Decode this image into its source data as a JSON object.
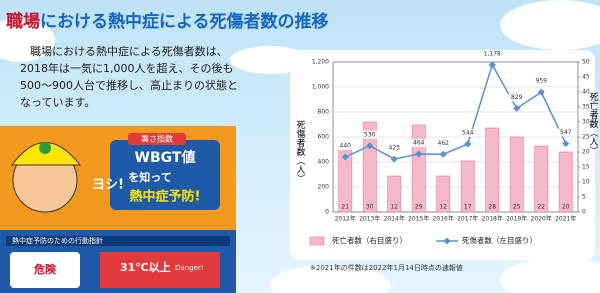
{
  "header": {
    "title_red": "職場",
    "title_rest": "における熱中症による死傷者数の推移"
  },
  "body": {
    "lines": [
      "職場における熱中症による死傷者数は、",
      "2018年は一気に1,000人を超え、その後も",
      "500〜900人台で推移し、高止まりの状態と",
      "なっています。"
    ]
  },
  "poster": {
    "badge": "暑さ指数",
    "sign": "WBGT値",
    "line1": "を知って",
    "line2": "熱中症予防!",
    "shout": "ヨシ!",
    "guide": "熱中症予防のための行動指針",
    "level": "危険",
    "temp": "31℃以上",
    "danger": "Danger!"
  },
  "chart_data": {
    "type": "combo",
    "categories": [
      "2012年",
      "2013年",
      "2014年",
      "2015年",
      "2016年",
      "2017年",
      "2018年",
      "2019年",
      "2020年",
      "2021年"
    ],
    "series": [
      {
        "name": "死亡者数（右目盛り）",
        "type": "bar",
        "axis": "y2",
        "color": "#f5b9c9",
        "values": [
          21,
          30,
          12,
          29,
          12,
          17,
          28,
          25,
          22,
          20
        ]
      },
      {
        "name": "死傷者数（左目盛り）",
        "type": "line",
        "color": "#5b8fd0",
        "values": [
          440,
          530,
          423,
          464,
          462,
          544,
          1178,
          829,
          959,
          547
        ],
        "value_labels": [
          "440",
          "530",
          "423",
          "464",
          "462",
          "544",
          "1,178",
          "829",
          "959",
          "547"
        ]
      }
    ],
    "ylabel": "死傷者数（人）",
    "y2label": "死亡者数（人）",
    "ylim": [
      0,
      1200
    ],
    "yticks": [
      0,
      200,
      400,
      600,
      800,
      {
        "value": 1000,
        "label": "1,000"
      },
      {
        "value": 1200,
        "label": "1,200"
      }
    ],
    "y2lim": [
      0,
      50
    ],
    "y2ticks": [
      0,
      5,
      10,
      15,
      20,
      25,
      30,
      35,
      40,
      45,
      50
    ],
    "grid": true,
    "note": "※2021年の件数は2022年1月14日時点の速報値"
  }
}
